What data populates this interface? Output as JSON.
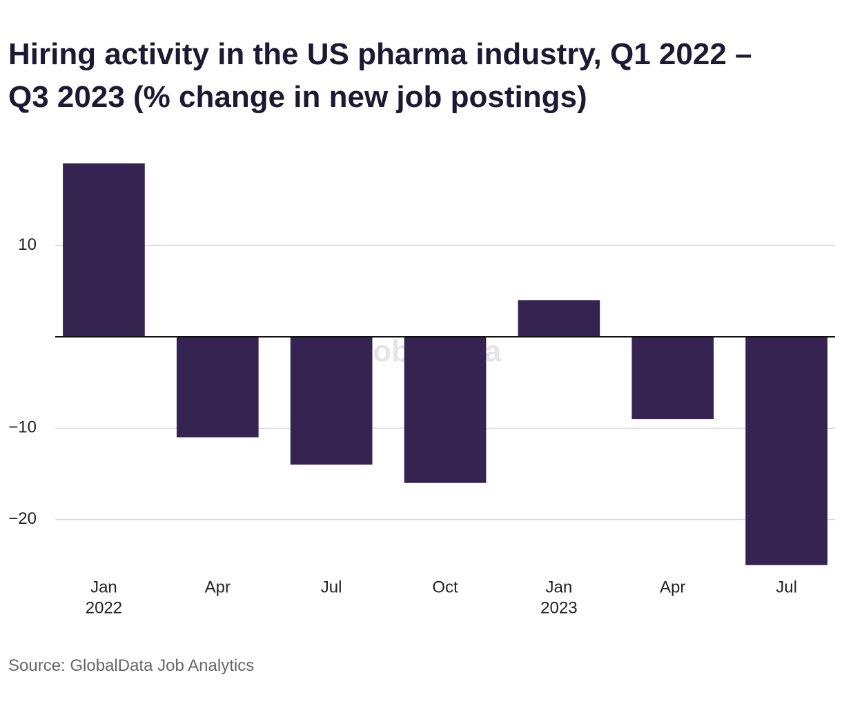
{
  "chart_data": {
    "type": "bar",
    "title_lines": [
      "Hiring activity in the US pharma industry, Q1 2022 –",
      "Q3 2023 (% change in new job postings)"
    ],
    "categories": [
      "Jan",
      "Apr",
      "Jul",
      "Oct",
      "Jan",
      "Apr",
      "Jul"
    ],
    "year_labels": [
      "2022",
      null,
      null,
      null,
      "2023",
      null,
      null
    ],
    "values": [
      19,
      -11,
      -14,
      -16,
      4,
      -9,
      -25
    ],
    "color": "#352452",
    "ylim": [
      -25,
      19
    ],
    "yticks": [
      {
        "value": -20,
        "label": "−20"
      },
      {
        "value": -10,
        "label": "−10"
      },
      10
    ],
    "grid": true,
    "watermark": "GlobalData",
    "source": "Source: GlobalData Job Analytics"
  }
}
